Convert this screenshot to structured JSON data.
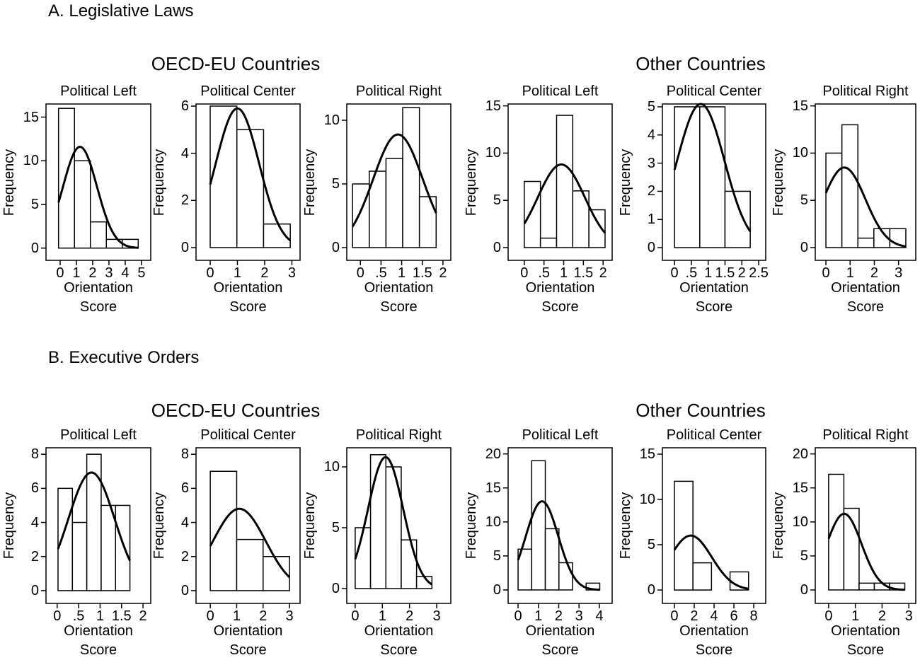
{
  "sections": [
    {
      "title": "A. Legislative Laws",
      "groups": [
        "OECD-EU Countries",
        "Other Countries"
      ]
    },
    {
      "title": "B. Executive Orders",
      "groups": [
        "OECD-EU Countries",
        "Other Countries"
      ]
    }
  ],
  "chart_data": [
    {
      "type": "histogram",
      "title": "Political Left",
      "xlabel": "Orientation Score",
      "ylabel": "Frequency",
      "bins": [
        -0.1,
        0.88,
        1.86,
        2.84,
        3.82,
        4.8
      ],
      "counts": [
        16,
        10,
        3,
        1,
        1
      ],
      "fit": {
        "mean": 1.22,
        "sd": 1.045
      },
      "xlim": [
        -0.87,
        5.57
      ],
      "ylim": [
        -1.4,
        16.5
      ],
      "xticks": [
        0,
        1,
        2,
        3,
        4,
        5
      ],
      "yticks": [
        0,
        5,
        10,
        15
      ]
    },
    {
      "type": "histogram",
      "title": "Political Center",
      "xlabel": "Orientation Score",
      "ylabel": "Frequency",
      "bins": [
        0,
        0.98,
        1.96,
        2.94
      ],
      "counts": [
        6,
        5,
        1
      ],
      "fit": {
        "mean": 1.0,
        "sd": 0.795
      },
      "xlim": [
        -0.52,
        3.3
      ],
      "ylim": [
        -0.54,
        6.09
      ],
      "xticks": [
        0,
        1,
        2,
        3
      ],
      "yticks": [
        0,
        2,
        4,
        6
      ]
    },
    {
      "type": "histogram",
      "title": "Political Right",
      "xlabel": "Orientation Score",
      "ylabel": "Frequency",
      "bins": [
        -0.19,
        0.215,
        0.62,
        1.025,
        1.43,
        1.835
      ],
      "counts": [
        5,
        6,
        7,
        11,
        4
      ],
      "fit": {
        "mean": 0.91,
        "sd": 0.6
      },
      "xlim": [
        -0.33,
        2.19
      ],
      "ylim": [
        -1.0,
        11.28
      ],
      "xticks": [
        0,
        {
          "value": 0.5,
          "label": ".5"
        },
        1,
        1.5,
        2
      ],
      "yticks": [
        0,
        5,
        10
      ]
    },
    {
      "type": "histogram",
      "title": "Political Left",
      "xlabel": "Orientation Score",
      "ylabel": "Frequency",
      "bins": [
        0,
        0.41,
        0.82,
        1.23,
        1.64,
        2.05
      ],
      "counts": [
        7,
        1,
        14,
        6,
        4
      ],
      "fit": {
        "mean": 0.94,
        "sd": 0.595
      },
      "xlim": [
        -0.41,
        2.23
      ],
      "ylim": [
        -1.35,
        15.2
      ],
      "xticks": [
        0,
        {
          "value": 0.5,
          "label": ".5"
        },
        1,
        1.5,
        2
      ],
      "yticks": [
        0,
        5,
        10,
        15
      ]
    },
    {
      "type": "histogram",
      "title": "Political Center",
      "xlabel": "Orientation Score",
      "ylabel": "Frequency",
      "bins": [
        0,
        0.75,
        1.5,
        2.25
      ],
      "counts": [
        5,
        5,
        2
      ],
      "fit": {
        "mean": 0.78,
        "sd": 0.704
      },
      "xlim": [
        -0.36,
        2.71
      ],
      "ylim": [
        -0.45,
        5.1
      ],
      "xticks": [
        0,
        {
          "value": 0.5,
          "label": ".5"
        },
        1,
        1.5,
        2,
        2.5
      ],
      "yticks": [
        0,
        1,
        2,
        3,
        4,
        5
      ]
    },
    {
      "type": "histogram",
      "title": "Political Right",
      "xlabel": "Orientation Score",
      "ylabel": "Frequency",
      "bins": [
        0,
        0.66,
        1.32,
        1.98,
        2.64,
        3.3
      ],
      "counts": [
        10,
        13,
        1,
        2,
        2
      ],
      "fit": {
        "mean": 0.76,
        "sd": 0.87
      },
      "xlim": [
        -0.44,
        3.71
      ],
      "ylim": [
        -1.35,
        15.2
      ],
      "xticks": [
        0,
        1,
        2,
        3
      ],
      "yticks": [
        0,
        5,
        10,
        15
      ]
    },
    {
      "type": "histogram",
      "title": "Political Left",
      "xlabel": "Orientation Score",
      "ylabel": "Frequency",
      "bins": [
        0.02,
        0.355,
        0.69,
        1.025,
        1.36,
        1.695
      ],
      "counts": [
        6,
        4,
        8,
        5,
        5
      ],
      "fit": {
        "mean": 0.8,
        "sd": 0.54
      },
      "xlim": [
        -0.26,
        2.18
      ],
      "ylim": [
        -0.75,
        8.38
      ],
      "xticks": [
        0,
        {
          "value": 0.5,
          "label": ".5"
        },
        1,
        1.5,
        2
      ],
      "yticks": [
        0,
        2,
        4,
        6,
        8
      ]
    },
    {
      "type": "histogram",
      "title": "Political Center",
      "xlabel": "Orientation Score",
      "ylabel": "Frequency",
      "bins": [
        0,
        1,
        2,
        3
      ],
      "counts": [
        7,
        3,
        2
      ],
      "fit": {
        "mean": 1.1,
        "sd": 0.997
      },
      "xlim": [
        -0.54,
        3.4
      ],
      "ylim": [
        -0.75,
        8.38
      ],
      "xticks": [
        0,
        1,
        2,
        3
      ],
      "yticks": [
        0,
        2,
        4,
        6,
        8
      ]
    },
    {
      "type": "histogram",
      "title": "Political Right",
      "xlabel": "Orientation Score",
      "ylabel": "Frequency",
      "bins": [
        0,
        0.565,
        1.13,
        1.695,
        2.26,
        2.825
      ],
      "counts": [
        5,
        11,
        10,
        4,
        1
      ],
      "fit": {
        "mean": 1.12,
        "sd": 0.647
      },
      "xlim": [
        -0.31,
        3.52
      ],
      "ylim": [
        -1.22,
        11.57
      ],
      "xticks": [
        0,
        1,
        2,
        3
      ],
      "yticks": [
        0,
        5,
        10
      ]
    },
    {
      "type": "histogram",
      "title": "Political Left",
      "xlabel": "Orientation Score",
      "ylabel": "Frequency",
      "bins": [
        0,
        0.67,
        1.34,
        2.01,
        2.68,
        3.35,
        4.02
      ],
      "counts": [
        6,
        19,
        9,
        4,
        0,
        1
      ],
      "fit": {
        "mean": 1.18,
        "sd": 0.8
      },
      "xlim": [
        -0.49,
        4.63
      ],
      "ylim": [
        -1.98,
        20.9
      ],
      "xticks": [
        0,
        1,
        2,
        3,
        4
      ],
      "yticks": [
        0,
        5,
        10,
        15,
        20
      ]
    },
    {
      "type": "histogram",
      "title": "Political Center",
      "xlabel": "Orientation Score",
      "ylabel": "Frequency",
      "bins": [
        0,
        1.87,
        3.74,
        5.61,
        7.48
      ],
      "counts": [
        12,
        3,
        0,
        2
      ],
      "fit": {
        "mean": 1.65,
        "sd": 2.11
      },
      "xlim": [
        -1.21,
        9.21
      ],
      "ylim": [
        -1.48,
        15.7
      ],
      "xticks": [
        0,
        2,
        4,
        6,
        8
      ],
      "yticks": [
        0,
        5,
        10,
        15
      ]
    },
    {
      "type": "histogram",
      "title": "Political Right",
      "xlabel": "Orientation Score",
      "ylabel": "Frequency",
      "bins": [
        0,
        0.57,
        1.14,
        1.71,
        2.28,
        2.85
      ],
      "counts": [
        17,
        12,
        1,
        1,
        1
      ],
      "fit": {
        "mean": 0.58,
        "sd": 0.65
      },
      "xlim": [
        -0.5,
        3.26
      ],
      "ylim": [
        -1.98,
        20.9
      ],
      "xticks": [
        0,
        1,
        2,
        3
      ],
      "yticks": [
        0,
        5,
        10,
        15,
        20
      ]
    }
  ]
}
